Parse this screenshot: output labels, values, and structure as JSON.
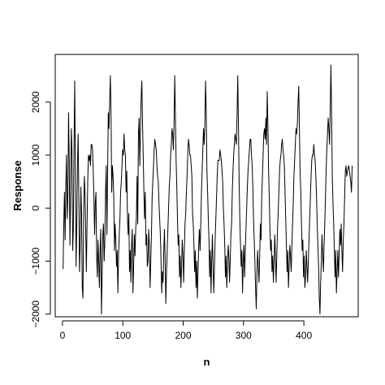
{
  "chart_data": {
    "type": "line",
    "title": "",
    "xlabel": "n",
    "ylabel": "Response",
    "xlim": [
      -12,
      490
    ],
    "ylim": [
      -2050,
      2900
    ],
    "x_ticks": [
      0,
      100,
      200,
      300,
      400
    ],
    "y_ticks": [
      -2000,
      -1000,
      0,
      1000,
      2000
    ],
    "x_tick_labels": [
      "0",
      "100",
      "200",
      "300",
      "400"
    ],
    "y_tick_labels": [
      "−2000",
      "−1000",
      "0",
      "1000",
      "2000"
    ],
    "grid": false,
    "legend": "none",
    "line_color": "#000000",
    "series": [
      {
        "x_start": 1,
        "x_end": 480,
        "values": [
          -1150,
          -300,
          300,
          -600,
          400,
          1000,
          -200,
          200,
          1800,
          900,
          -700,
          300,
          1500,
          1100,
          -800,
          -400,
          1200,
          2400,
          600,
          -1100,
          -300,
          800,
          1400,
          200,
          -1200,
          -700,
          400,
          -100,
          -1500,
          -1700,
          -200,
          600,
          300,
          -400,
          -1200,
          -300,
          500,
          1000,
          900,
          1000,
          800,
          1200,
          1200,
          1100,
          700,
          200,
          -500,
          100,
          300,
          -900,
          -1300,
          -600,
          -1000,
          -1500,
          -800,
          -400,
          -2000,
          -1300,
          -500,
          -300,
          -1000,
          -600,
          300,
          800,
          -500,
          600,
          1800,
          1500,
          2000,
          2500,
          1800,
          300,
          800,
          600,
          200,
          -800,
          -300,
          -600,
          -1100,
          -800,
          -1600,
          -900,
          -500,
          -200,
          300,
          500,
          800,
          1100,
          1000,
          1400,
          1100,
          1000,
          300,
          700,
          -200,
          -500,
          -100,
          -1200,
          -800,
          -1400,
          -700,
          -400,
          -1600,
          -1100,
          -500,
          -900,
          -400,
          -200,
          600,
          -300,
          1400,
          1700,
          800,
          1500,
          2100,
          2400,
          1600,
          1000,
          300,
          -200,
          300,
          -700,
          -500,
          -1100,
          -1000,
          -400,
          -700,
          -1500,
          -1000,
          -500,
          200,
          500,
          800,
          1100,
          1300,
          1200,
          1100,
          800,
          600,
          500,
          100,
          -200,
          -500,
          -1000,
          -1600,
          -1200,
          -1400,
          -800,
          -400,
          -1000,
          -1800,
          -1200,
          -800,
          -400,
          0,
          400,
          600,
          1000,
          1200,
          1500,
          1400,
          1100,
          1600,
          2500,
          1700,
          900,
          400,
          -200,
          -700,
          -500,
          -1300,
          -900,
          -1500,
          -1100,
          -600,
          -900,
          -1400,
          -800,
          -300,
          -100,
          300,
          600,
          1000,
          1300,
          1200,
          1000,
          1000,
          800,
          600,
          -100,
          -300,
          -700,
          -1200,
          -800,
          -1500,
          -1000,
          -1700,
          -1200,
          -700,
          -400,
          -800,
          -300,
          300,
          700,
          1100,
          1500,
          1200,
          1600,
          2400,
          1800,
          700,
          300,
          -200,
          -600,
          -1300,
          -800,
          -1600,
          -1000,
          -500,
          -1100,
          -1600,
          -1100,
          -600,
          -200,
          200,
          600,
          900,
          900,
          900,
          1100,
          1000,
          900,
          700,
          500,
          0,
          -300,
          -700,
          -1300,
          -900,
          -1500,
          -1100,
          -700,
          -900,
          -1400,
          -1000,
          -500,
          -300,
          300,
          700,
          1000,
          1200,
          1400,
          1300,
          1200,
          1800,
          2500,
          1600,
          500,
          -200,
          -700,
          -1100,
          -800,
          -1600,
          -1000,
          -700,
          -1300,
          -800,
          -400,
          0,
          400,
          700,
          900,
          1100,
          1300,
          1300,
          1000,
          800,
          400,
          -200,
          -600,
          -1000,
          -1500,
          -1900,
          -1200,
          -800,
          -1100,
          -1400,
          -900,
          -300,
          -600,
          200,
          600,
          1000,
          1400,
          1500,
          1300,
          1700,
          1200,
          2200,
          1600,
          700,
          200,
          -400,
          -800,
          -600,
          -1200,
          -900,
          -1400,
          -1000,
          -500,
          -900,
          -1400,
          -900,
          -400,
          -100,
          300,
          700,
          900,
          1000,
          1200,
          1300,
          1100,
          1000,
          800,
          300,
          -200,
          -700,
          -1200,
          -800,
          -1500,
          -1100,
          -700,
          -900,
          -1200,
          -700,
          -300,
          100,
          600,
          900,
          1200,
          1500,
          1400,
          1600,
          2000,
          2300,
          1500,
          700,
          300,
          -300,
          -800,
          -600,
          -1300,
          -900,
          -1500,
          -1300,
          -800,
          -1100,
          -1400,
          -1000,
          -600,
          -200,
          200,
          600,
          900,
          1000,
          1000,
          1200,
          1000,
          900,
          600,
          200,
          -300,
          -700,
          -1100,
          -1700,
          -2000,
          -1400,
          -1000,
          -500,
          -900,
          -1200,
          -700,
          -300,
          200,
          700,
          1100,
          1400,
          1700,
          1500,
          1200,
          1900,
          2700,
          1800,
          600,
          100,
          -300,
          -800,
          -1300,
          -800,
          -1600,
          -1200,
          -800,
          -1300,
          -900,
          -400,
          -700,
          -300,
          -800,
          -1200,
          -600,
          -300,
          200,
          700,
          800,
          600,
          700,
          750,
          800,
          700,
          600,
          500,
          300,
          800
        ]
      }
    ]
  }
}
